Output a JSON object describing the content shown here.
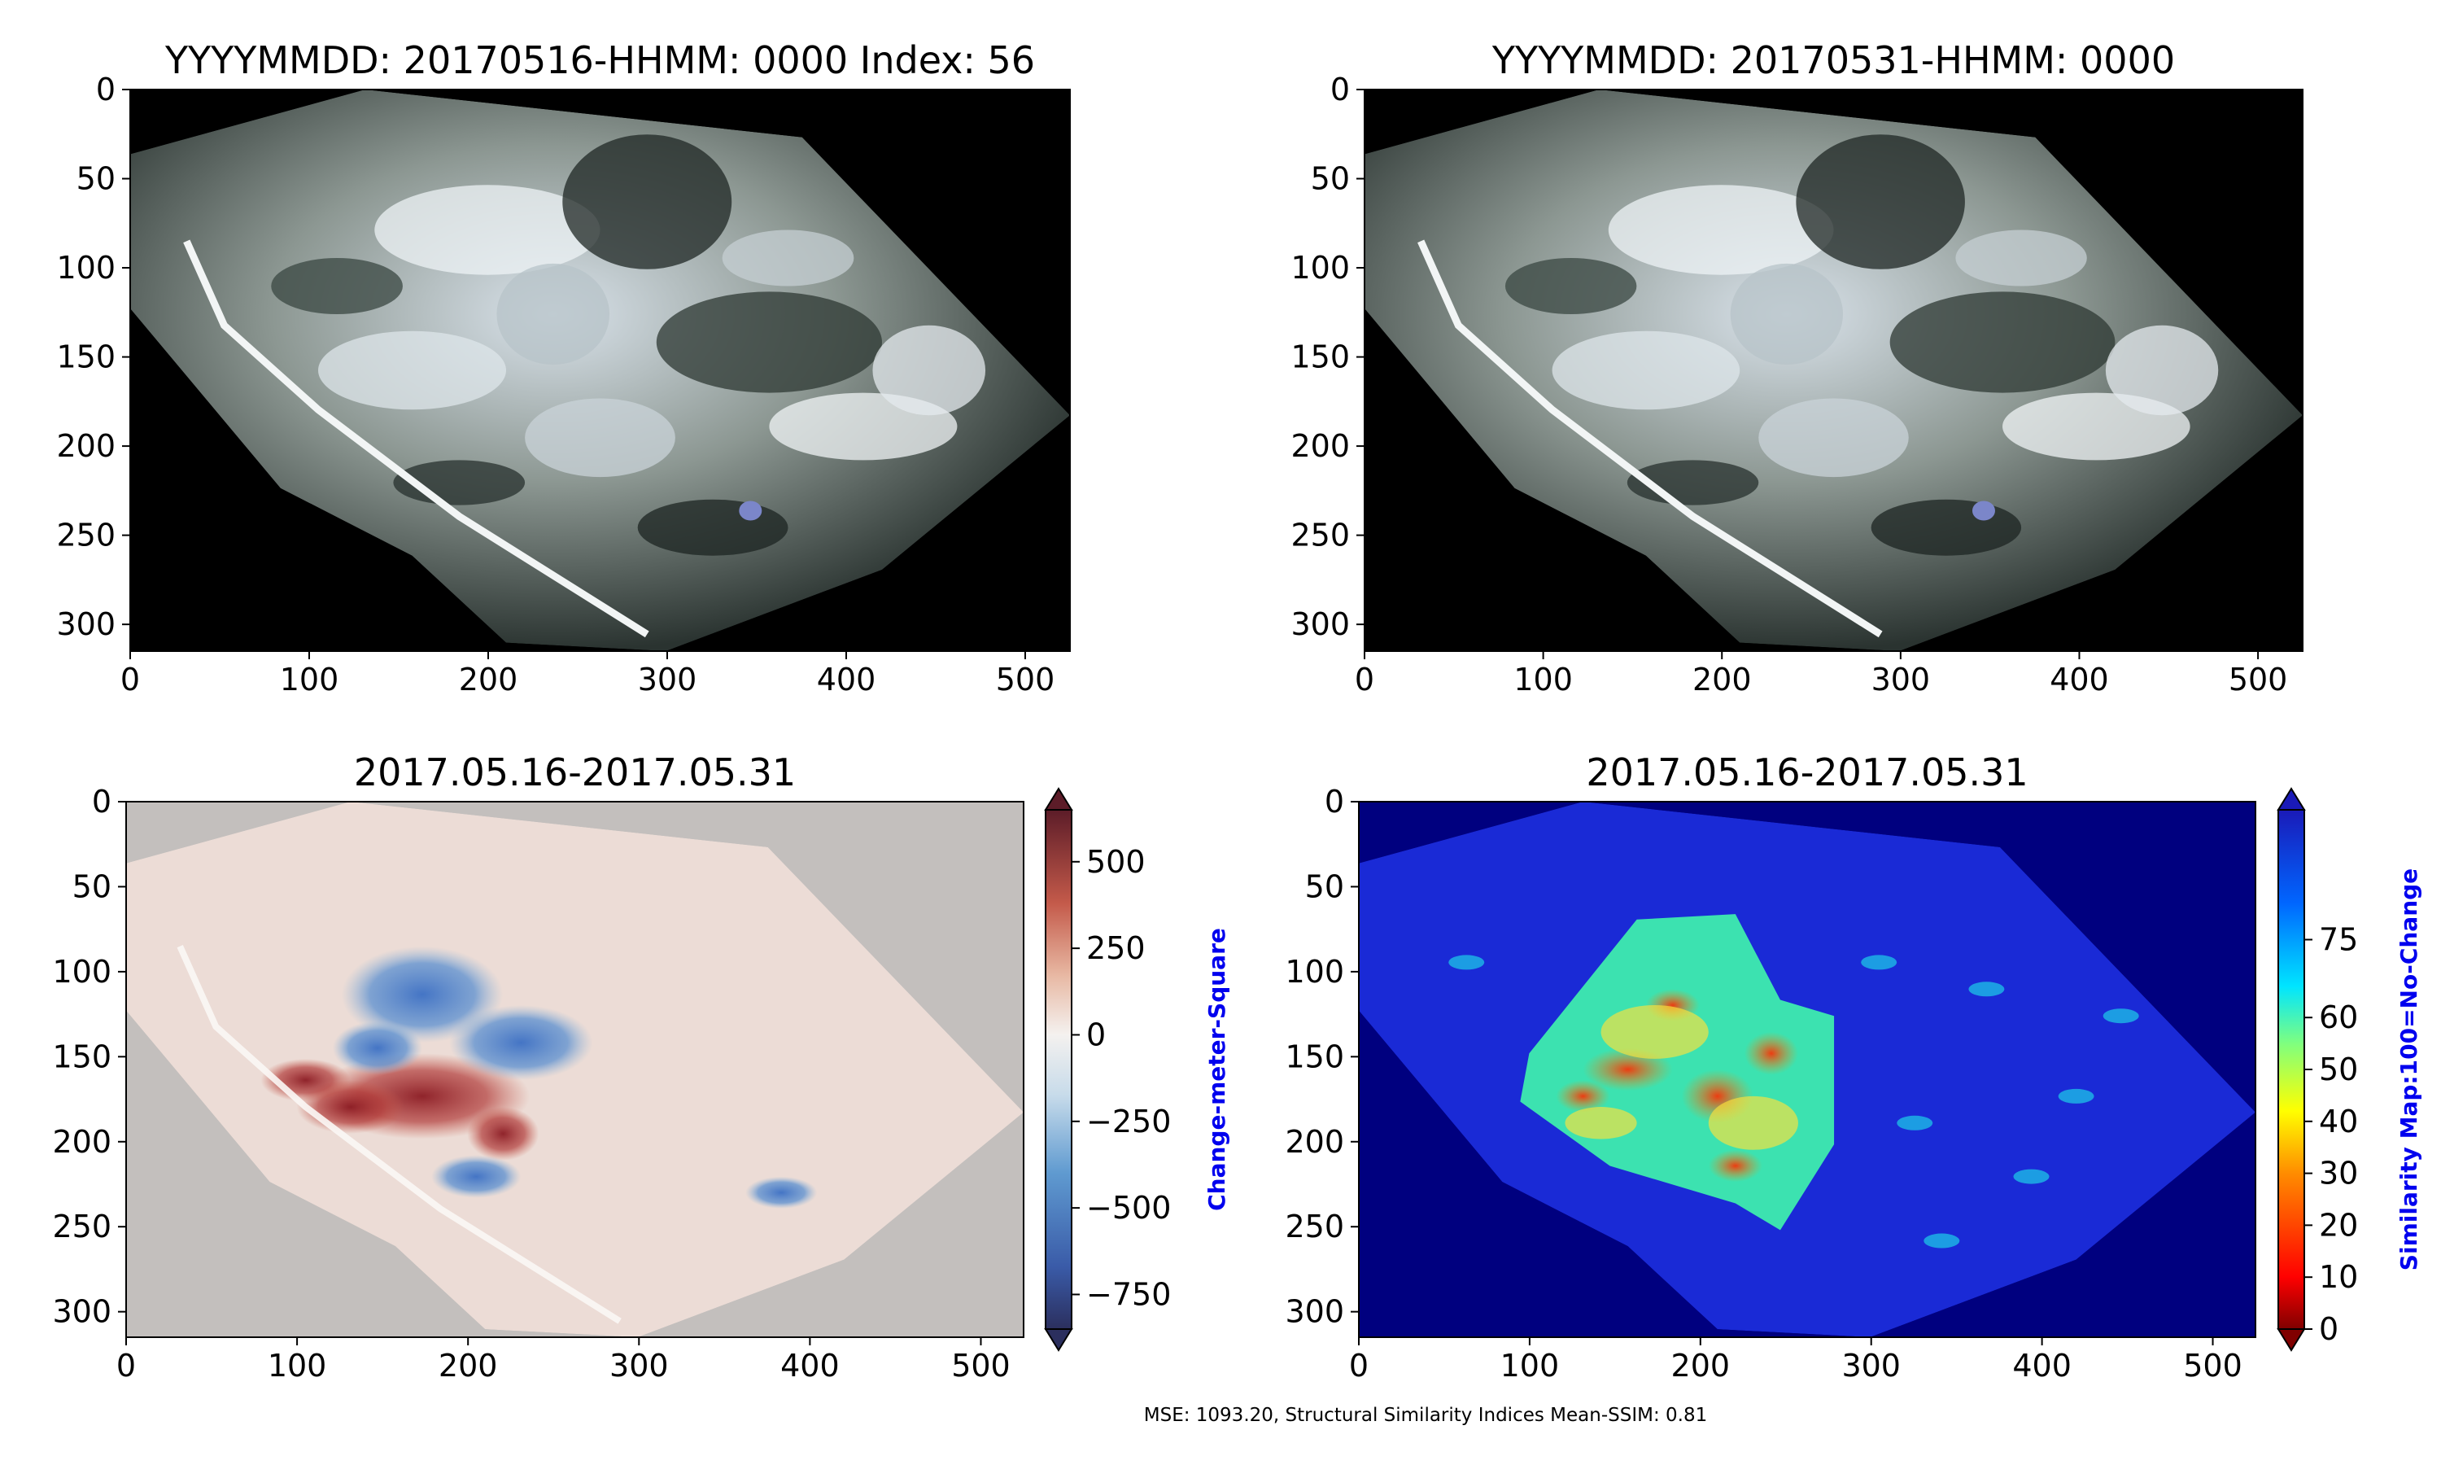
{
  "figure": {
    "footer_text": "MSE: 1093.20, Structural Similarity Indices Mean-SSIM: 0.81"
  },
  "chart_data": [
    {
      "type": "heatmap",
      "title": "YYYYMMDD: 20170516-HHMM: 0000 Index: 56",
      "xlim": [
        0,
        525
      ],
      "ylim": [
        315,
        0
      ],
      "x_ticks": [
        0,
        100,
        200,
        300,
        400,
        500
      ],
      "y_ticks": [
        0,
        50,
        100,
        150,
        200,
        250,
        300
      ],
      "image": "rgb-satellite",
      "background": "#000000"
    },
    {
      "type": "heatmap",
      "title": "YYYYMMDD: 20170531-HHMM: 0000",
      "xlim": [
        0,
        525
      ],
      "ylim": [
        315,
        0
      ],
      "x_ticks": [
        0,
        100,
        200,
        300,
        400,
        500
      ],
      "y_ticks": [
        0,
        50,
        100,
        150,
        200,
        250,
        300
      ],
      "image": "rgb-satellite",
      "background": "#000000"
    },
    {
      "type": "heatmap",
      "title": "2017.05.16-2017.05.31",
      "xlim": [
        0,
        525
      ],
      "ylim": [
        315,
        0
      ],
      "x_ticks": [
        0,
        100,
        200,
        300,
        400,
        500
      ],
      "y_ticks": [
        0,
        50,
        100,
        150,
        200,
        250,
        300
      ],
      "background": "#c3bfbd",
      "colorbar": {
        "label": "Change-meter-Square",
        "label_color": "#0000ee",
        "colormap": "diverging-blue-white-red",
        "range": [
          -850,
          650
        ],
        "ticks": [
          500,
          250,
          0,
          -250,
          -500,
          -750
        ],
        "tick_labels": [
          "500",
          "250",
          "0",
          "−250",
          "−500",
          "−750"
        ],
        "extend": "both"
      }
    },
    {
      "type": "heatmap",
      "title": "2017.05.16-2017.05.31",
      "xlim": [
        0,
        525
      ],
      "ylim": [
        315,
        0
      ],
      "x_ticks": [
        0,
        100,
        200,
        300,
        400,
        500
      ],
      "y_ticks": [
        0,
        50,
        100,
        150,
        200,
        250,
        300
      ],
      "background": "#00007f",
      "colorbar": {
        "label": "Similarity Map:100=No-Change",
        "label_color": "#0000ee",
        "colormap": "jet-reversed",
        "range": [
          0,
          100
        ],
        "ticks": [
          75,
          60,
          50,
          40,
          30,
          20,
          10,
          0
        ],
        "tick_labels": [
          "75",
          "60",
          "50",
          "40",
          "30",
          "20",
          "10",
          "0"
        ],
        "extend": "both"
      }
    }
  ]
}
